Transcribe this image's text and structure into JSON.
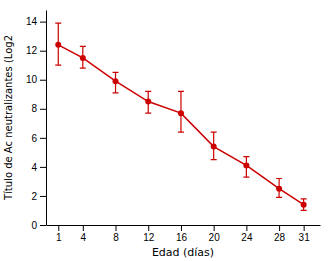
{
  "chart_data": {
    "type": "line",
    "xlabel": "Edad (días)",
    "ylabel": "Título de Ac neutralizantes (Log2",
    "x": [
      1,
      4,
      8,
      12,
      16,
      20,
      24,
      28,
      31
    ],
    "values": [
      12.4,
      11.5,
      9.9,
      8.5,
      7.7,
      5.4,
      4.1,
      2.5,
      1.4
    ],
    "yerr_lower": [
      1.4,
      0.7,
      0.8,
      0.8,
      1.3,
      0.9,
      0.8,
      0.6,
      0.4
    ],
    "yerr_upper": [
      1.5,
      0.8,
      0.6,
      0.7,
      1.5,
      1.0,
      0.6,
      0.7,
      0.4
    ],
    "color": "#cc0000",
    "marker": "circle",
    "line_style": "solid",
    "xlim": [
      -0.5,
      33
    ],
    "ylim": [
      0,
      14.8
    ],
    "xticks": [
      1,
      4,
      8,
      12,
      16,
      20,
      24,
      28,
      31
    ],
    "yticks": [
      0,
      2,
      4,
      6,
      8,
      10,
      12,
      14
    ]
  }
}
